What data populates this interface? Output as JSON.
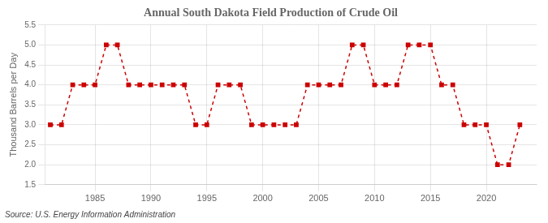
{
  "chart_data": {
    "type": "line",
    "title": "Annual South Dakota Field Production of Crude Oil",
    "ylabel": "Thousand Barrels per Day",
    "annotations": [
      "Source: U.S. Energy Information Administration"
    ],
    "x": [
      1981,
      1982,
      1983,
      1984,
      1985,
      1986,
      1987,
      1988,
      1989,
      1990,
      1991,
      1992,
      1993,
      1994,
      1995,
      1996,
      1997,
      1998,
      1999,
      2000,
      2001,
      2002,
      2003,
      2004,
      2005,
      2006,
      2007,
      2008,
      2009,
      2010,
      2011,
      2012,
      2013,
      2014,
      2015,
      2016,
      2017,
      2018,
      2019,
      2020,
      2021,
      2022,
      2023
    ],
    "values": [
      3.0,
      3.0,
      4.0,
      4.0,
      4.0,
      5.0,
      5.0,
      4.0,
      4.0,
      4.0,
      4.0,
      4.0,
      4.0,
      3.0,
      3.0,
      4.0,
      4.0,
      4.0,
      3.0,
      3.0,
      3.0,
      3.0,
      3.0,
      4.0,
      4.0,
      4.0,
      4.0,
      5.0,
      5.0,
      4.0,
      4.0,
      4.0,
      5.0,
      5.0,
      5.0,
      4.0,
      4.0,
      3.0,
      3.0,
      3.0,
      2.0,
      2.0,
      3.0
    ],
    "color": "#cc0000",
    "marker": "square",
    "line_style": "dashed",
    "xlim": [
      1980.5,
      2024.5
    ],
    "xticks": [
      1985,
      1990,
      1995,
      2000,
      2005,
      2010,
      2015,
      2020
    ],
    "ylim": [
      1.5,
      5.5
    ],
    "yticks": [
      1.5,
      {
        "value": 2.0,
        "label": "2.0"
      },
      2.5,
      {
        "value": 3.0,
        "label": "3.0"
      },
      3.5,
      {
        "value": 4.0,
        "label": "4.0"
      },
      4.5,
      {
        "value": 5.0,
        "label": "5.0"
      },
      5.5
    ],
    "grid": true
  }
}
